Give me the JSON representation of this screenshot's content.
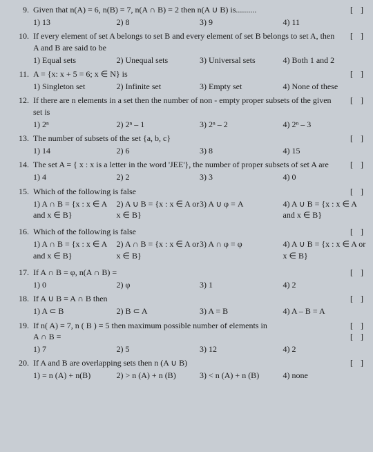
{
  "questions": [
    {
      "num": "9.",
      "text": "Given that n(A) = 6, n(B) = 7, n(A ∩ B) = 2 then n(A ∪ B) is..........",
      "opts": [
        "1) 13",
        "2) 8",
        "3) 9",
        "4) 11"
      ]
    },
    {
      "num": "10.",
      "text": "If every element of set A belongs to set B and every element of set B belongs to set A, then A and B are said to be",
      "opts": [
        "1) Equal sets",
        "2) Unequal sets",
        "3) Universal sets",
        "4) Both 1 and 2"
      ]
    },
    {
      "num": "11.",
      "text": "A = {x: x + 5 = 6; x ∈ N} is",
      "opts": [
        "1) Singleton set",
        "2) Infinite set",
        "3) Empty set",
        "4) None of these"
      ]
    },
    {
      "num": "12.",
      "text": "If there are n elements in a set then the number of non - empty proper subsets of the given set is",
      "opts": [
        "1) 2ⁿ",
        "2) 2ⁿ – 1",
        "3) 2ⁿ – 2",
        "4) 2ⁿ – 3"
      ]
    },
    {
      "num": "13.",
      "text": "The number of subsets of the set {a, b, c}",
      "opts": [
        "1) 14",
        "2) 6",
        "3) 8",
        "4) 15"
      ]
    },
    {
      "num": "14.",
      "text": "The set A = { x : x  is a letter in the word 'JEE'}, the number of proper subsets of set A are",
      "opts": [
        "1) 4",
        "2) 2",
        "3) 3",
        "4) 0"
      ]
    },
    {
      "num": "15.",
      "text": "Which of the following is false",
      "opts2": [
        "1) A ∩ B = {x : x ∈ A and x ∈ B}",
        "2) A ∪ B = {x : x ∈ A or x ∈ B}",
        "3) A ∪ φ = A",
        "4) A ∪ B = {x : x ∈ A and x ∈ B}"
      ]
    },
    {
      "num": "16.",
      "text": "Which of the following is false",
      "opts2": [
        "1) A ∩ B = {x : x ∈ A and x ∈ B}",
        "2) A ∩ B = {x : x ∈ A or x ∈ B}",
        "3) A ∩ φ = φ",
        "4) A ∪ B = {x : x ∈ A or x ∈ B}"
      ]
    },
    {
      "num": "17.",
      "text": "If A ∩ B = φ, n(A ∩ B) =",
      "opts": [
        "1) 0",
        "2) φ",
        "3) 1",
        "4) 2"
      ]
    },
    {
      "num": "18.",
      "text": "If A ∪ B = A ∩ B  then",
      "opts": [
        "1) A ⊂ B",
        "2) B ⊂ A",
        "3) A = B",
        "4) A – B = A"
      ]
    },
    {
      "num": "19.",
      "text": "If n( A) = 7, n ( B ) = 5 then maximum possible number of elements in",
      "cont": "A ∩ B =",
      "opts": [
        "1) 7",
        "2) 5",
        "3) 12",
        "4) 2"
      ]
    },
    {
      "num": "20.",
      "text": "If A and B are overlapping sets then n (A ∪ B)",
      "opts": [
        "1) = n (A) + n(B)",
        "2) > n (A) + n (B)",
        "3) < n (A) + n (B)",
        "4) none"
      ]
    }
  ],
  "bracket": "[  ]"
}
